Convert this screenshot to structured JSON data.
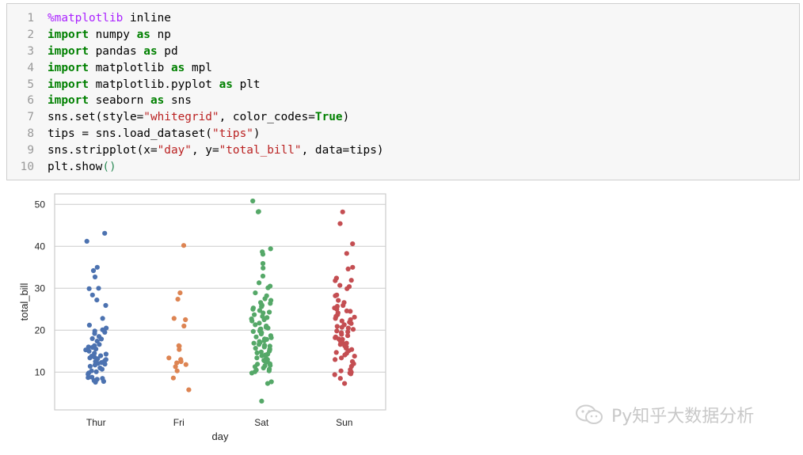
{
  "code_cell": {
    "lines": [
      {
        "n": "1",
        "tokens": [
          {
            "c": "magic",
            "t": "%matplotlib"
          },
          {
            "c": "txt",
            "t": " inline"
          }
        ]
      },
      {
        "n": "2",
        "tokens": [
          {
            "c": "kw",
            "t": "import"
          },
          {
            "c": "txt",
            "t": " numpy "
          },
          {
            "c": "kw",
            "t": "as"
          },
          {
            "c": "txt",
            "t": " np"
          }
        ]
      },
      {
        "n": "3",
        "tokens": [
          {
            "c": "kw",
            "t": "import"
          },
          {
            "c": "txt",
            "t": " pandas "
          },
          {
            "c": "kw",
            "t": "as"
          },
          {
            "c": "txt",
            "t": " pd"
          }
        ]
      },
      {
        "n": "4",
        "tokens": [
          {
            "c": "kw",
            "t": "import"
          },
          {
            "c": "txt",
            "t": " matplotlib "
          },
          {
            "c": "kw",
            "t": "as"
          },
          {
            "c": "txt",
            "t": " mpl"
          }
        ]
      },
      {
        "n": "5",
        "tokens": [
          {
            "c": "kw",
            "t": "import"
          },
          {
            "c": "txt",
            "t": " matplotlib.pyplot "
          },
          {
            "c": "kw",
            "t": "as"
          },
          {
            "c": "txt",
            "t": " plt"
          }
        ]
      },
      {
        "n": "6",
        "tokens": [
          {
            "c": "kw",
            "t": "import"
          },
          {
            "c": "txt",
            "t": " seaborn "
          },
          {
            "c": "kw",
            "t": "as"
          },
          {
            "c": "txt",
            "t": " sns"
          }
        ]
      },
      {
        "n": "7",
        "tokens": [
          {
            "c": "txt",
            "t": "sns.set(style="
          },
          {
            "c": "str",
            "t": "\"whitegrid\""
          },
          {
            "c": "txt",
            "t": ", color_codes="
          },
          {
            "c": "kw",
            "t": "True"
          },
          {
            "c": "txt",
            "t": ")"
          }
        ]
      },
      {
        "n": "8",
        "tokens": [
          {
            "c": "txt",
            "t": "tips = sns.load_dataset("
          },
          {
            "c": "str",
            "t": "\"tips\""
          },
          {
            "c": "txt",
            "t": ")"
          }
        ]
      },
      {
        "n": "9",
        "tokens": [
          {
            "c": "txt",
            "t": "sns.stripplot(x="
          },
          {
            "c": "str",
            "t": "\"day\""
          },
          {
            "c": "txt",
            "t": ", y="
          },
          {
            "c": "str",
            "t": "\"total_bill\""
          },
          {
            "c": "txt",
            "t": ", data=tips)"
          }
        ]
      },
      {
        "n": "10",
        "tokens": [
          {
            "c": "txt",
            "t": "plt.show"
          },
          {
            "c": "paren-g",
            "t": "()"
          }
        ]
      }
    ]
  },
  "chart_data": {
    "type": "scatter",
    "xlabel": "day",
    "ylabel": "total_bill",
    "categories": [
      "Thur",
      "Fri",
      "Sat",
      "Sun"
    ],
    "yticks": [
      10,
      20,
      30,
      40,
      50
    ],
    "ylim": [
      1.0,
      52.5
    ],
    "grid": true,
    "series": [
      {
        "color": "#4c72b0",
        "values": [
          43.1,
          41.2,
          35.0,
          34.2,
          32.7,
          30.0,
          29.9,
          28.4,
          27.2,
          25.9,
          22.8,
          21.2,
          20.5,
          20.1,
          19.8,
          19.5,
          19.2,
          18.5,
          18.0,
          17.9,
          17.4,
          16.6,
          16.3,
          16.0,
          15.9,
          15.5,
          15.3,
          15.0,
          14.5,
          14.3,
          13.9,
          13.8,
          13.6,
          13.4,
          13.2,
          13.0,
          12.7,
          12.5,
          12.3,
          12.1,
          11.9,
          11.7,
          11.4,
          11.0,
          10.7,
          10.3,
          10.1,
          9.8,
          9.5,
          8.8,
          8.7,
          8.5,
          8.3,
          8.0,
          7.8,
          7.6
        ]
      },
      {
        "color": "#dd8452",
        "values": [
          40.2,
          28.9,
          27.4,
          22.8,
          22.5,
          21.0,
          16.3,
          16.2,
          15.4,
          13.4,
          13.0,
          12.5,
          12.2,
          11.8,
          11.3,
          10.3,
          8.6,
          5.8
        ]
      },
      {
        "color": "#55a868",
        "values": [
          50.8,
          48.3,
          48.2,
          39.4,
          38.7,
          38.1,
          35.9,
          34.8,
          32.9,
          31.3,
          30.5,
          30.1,
          28.9,
          28.2,
          27.5,
          27.1,
          26.6,
          26.4,
          26.1,
          25.9,
          25.6,
          25.3,
          25.0,
          24.7,
          24.3,
          24.1,
          23.7,
          23.3,
          23.0,
          22.7,
          22.5,
          22.2,
          21.7,
          21.3,
          21.0,
          20.7,
          20.5,
          20.3,
          20.2,
          20.0,
          19.8,
          19.7,
          19.4,
          19.1,
          18.7,
          18.4,
          18.2,
          17.9,
          17.8,
          17.5,
          17.3,
          17.1,
          16.9,
          16.6,
          16.4,
          16.2,
          16.0,
          15.7,
          15.5,
          15.3,
          15.0,
          14.8,
          14.6,
          14.3,
          14.1,
          13.9,
          13.4,
          13.3,
          13.0,
          12.8,
          12.6,
          12.4,
          12.0,
          11.9,
          11.6,
          11.5,
          11.3,
          11.0,
          10.7,
          10.5,
          10.3,
          10.1,
          9.8,
          7.7,
          7.3,
          3.1
        ]
      },
      {
        "color": "#c44e52",
        "values": [
          48.2,
          45.4,
          40.6,
          38.3,
          35.0,
          34.6,
          32.4,
          31.9,
          31.8,
          30.7,
          30.4,
          29.9,
          28.4,
          28.2,
          27.1,
          26.6,
          25.9,
          25.7,
          25.3,
          25.0,
          24.6,
          24.5,
          24.1,
          23.7,
          23.3,
          23.1,
          22.8,
          22.5,
          22.2,
          21.9,
          21.6,
          21.3,
          20.9,
          20.7,
          20.5,
          20.2,
          19.8,
          19.6,
          19.4,
          19.0,
          18.7,
          18.4,
          18.2,
          17.9,
          17.8,
          17.5,
          17.3,
          17.1,
          16.9,
          16.6,
          16.3,
          16.0,
          15.7,
          15.4,
          15.1,
          14.7,
          14.5,
          14.1,
          13.8,
          13.4,
          13.0,
          12.5,
          12.0,
          11.4,
          10.6,
          10.3,
          10.0,
          9.8,
          9.6,
          9.4,
          8.5,
          7.3
        ]
      }
    ]
  },
  "watermark": {
    "text": "Py知乎大数据分析"
  }
}
